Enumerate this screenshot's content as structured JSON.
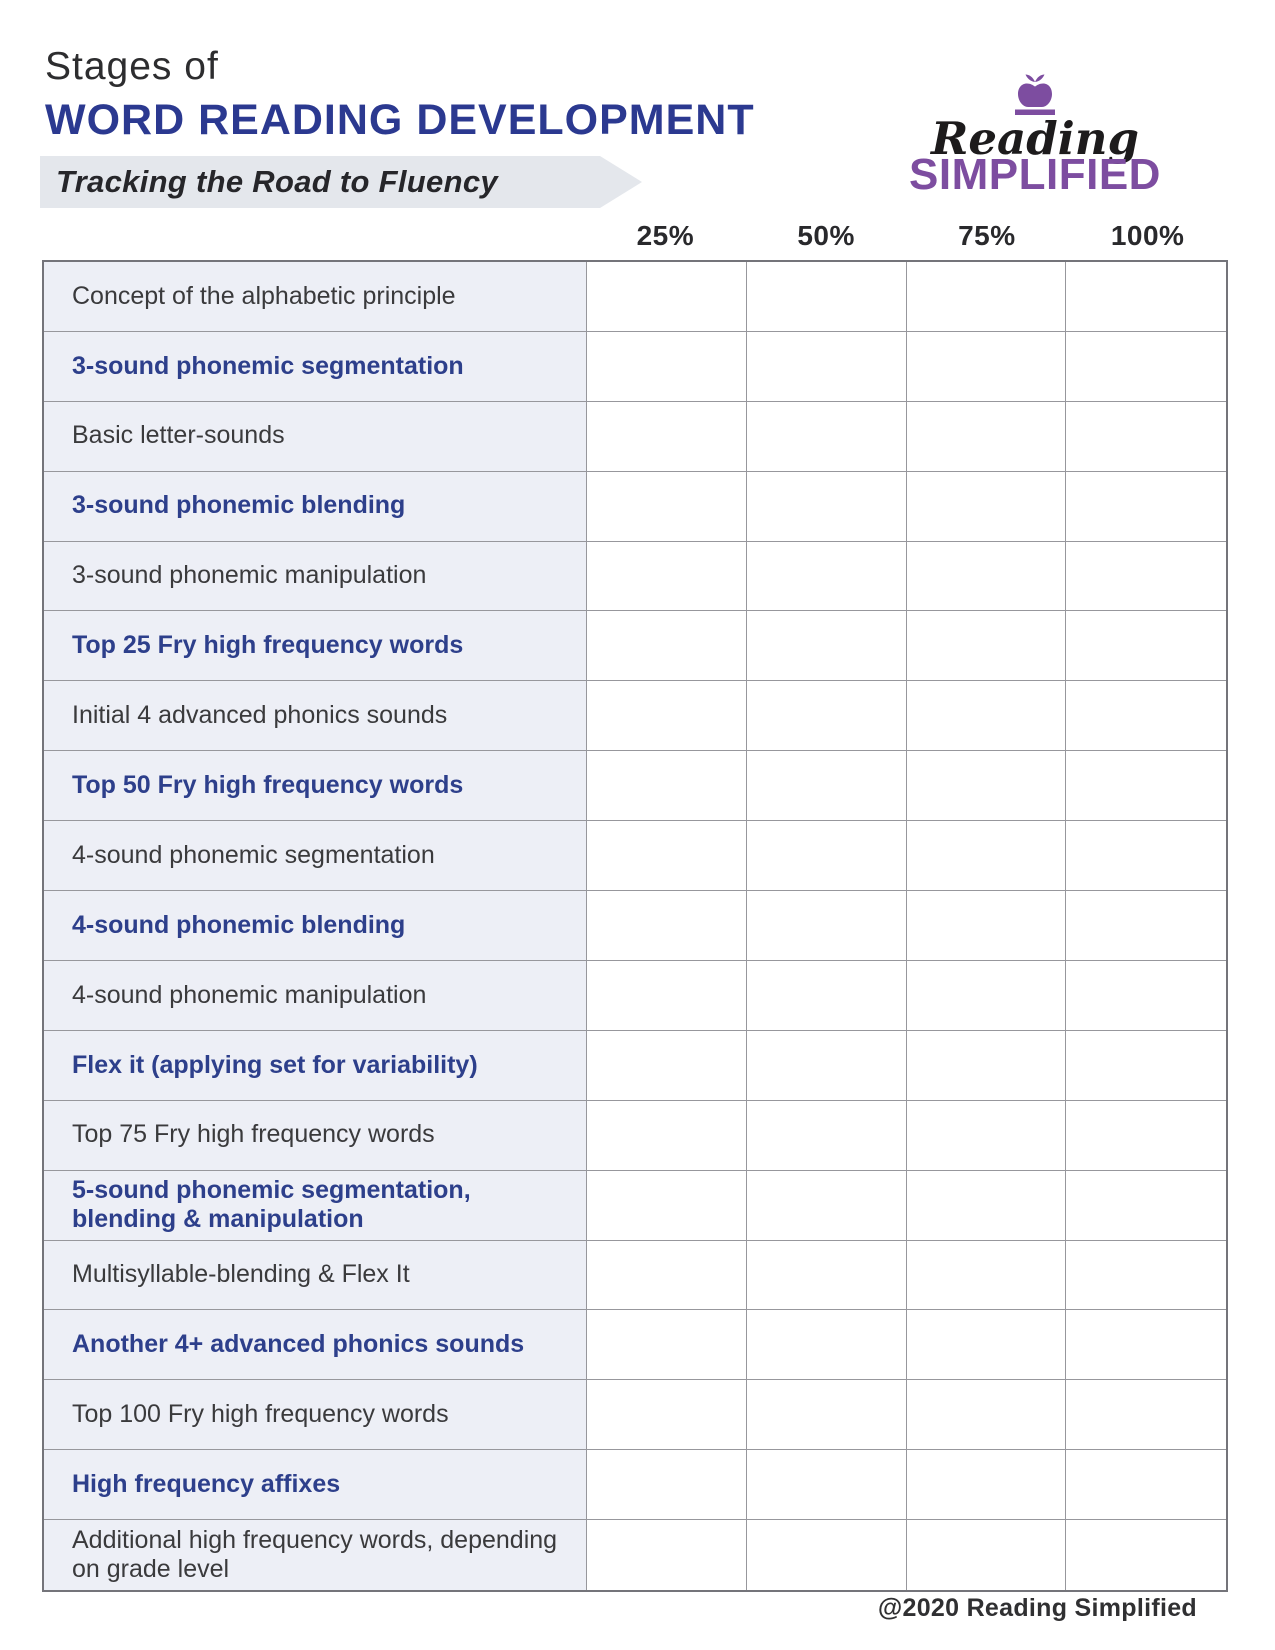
{
  "header": {
    "title_line1": "Stages of",
    "title_line2": "WORD READING DEVELOPMENT",
    "subtitle": "Tracking the Road to Fluency"
  },
  "logo": {
    "brand_top": "Reading",
    "brand_bottom": "SIMPLIFIED",
    "apple_icon": "apple-icon",
    "purple": "#7d4da0",
    "black": "#1d1b1c"
  },
  "table": {
    "columns": [
      "25%",
      "50%",
      "75%",
      "100%"
    ],
    "rows": [
      {
        "label": "Concept of the alphabetic principle",
        "emphasis": false
      },
      {
        "label": "3-sound phonemic segmentation",
        "emphasis": true
      },
      {
        "label": "Basic letter-sounds",
        "emphasis": false
      },
      {
        "label": "3-sound phonemic blending",
        "emphasis": true
      },
      {
        "label": "3-sound phonemic manipulation",
        "emphasis": false
      },
      {
        "label": "Top 25 Fry high frequency words",
        "emphasis": true
      },
      {
        "label": "Initial 4 advanced phonics sounds",
        "emphasis": false
      },
      {
        "label": "Top 50 Fry high frequency words",
        "emphasis": true
      },
      {
        "label": "4-sound phonemic segmentation",
        "emphasis": false
      },
      {
        "label": "4-sound phonemic blending",
        "emphasis": true
      },
      {
        "label": "4-sound phonemic manipulation",
        "emphasis": false
      },
      {
        "label": "Flex it (applying set for variability)",
        "emphasis": true
      },
      {
        "label": "Top 75 Fry high frequency words",
        "emphasis": false
      },
      {
        "label": "5-sound phonemic segmentation, blending & manipulation",
        "emphasis": true
      },
      {
        "label": "Multisyllable-blending & Flex It",
        "emphasis": false
      },
      {
        "label": "Another 4+ advanced phonics sounds",
        "emphasis": true
      },
      {
        "label": "Top 100 Fry high frequency words",
        "emphasis": false
      },
      {
        "label": "High frequency affixes",
        "emphasis": true
      },
      {
        "label": "Additional high frequency words, depending on grade level",
        "emphasis": false
      }
    ]
  },
  "footer": {
    "copyright": "@2020 Reading Simplified"
  },
  "colors": {
    "title_blue": "#2b3990",
    "row_emphasis_blue": "#2d3f8b",
    "label_cell_bg": "#edeff6",
    "banner_bg": "#e4e7ec",
    "brand_purple": "#7d4da0",
    "grid_line": "#97979c"
  }
}
